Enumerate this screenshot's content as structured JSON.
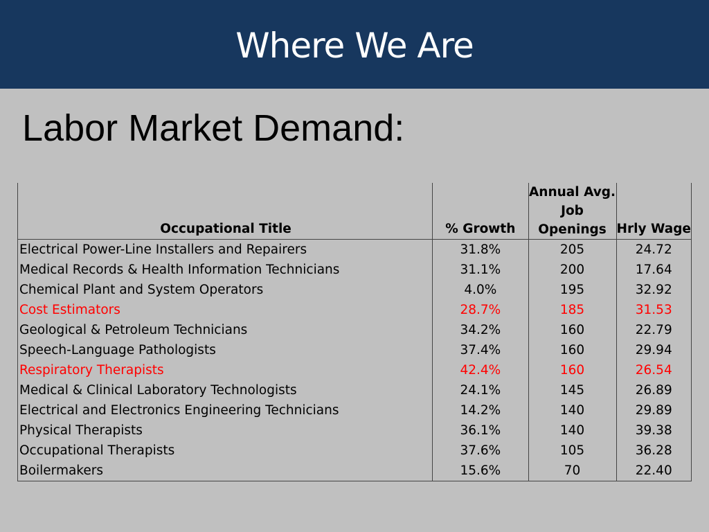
{
  "slide": {
    "title": "Where We Are",
    "subtitle": "Labor Market Demand:"
  },
  "table": {
    "headers": {
      "title": "Occupational Title",
      "growth": "% Growth",
      "openings_lines": [
        "Annual Avg.",
        "Job",
        "Openings"
      ],
      "wage": "Hrly Wage"
    },
    "highlight_color": "#ff0000",
    "rows": [
      {
        "title": "Electrical Power-Line Installers and Repairers",
        "growth": "31.8%",
        "openings": "205",
        "wage": "24.72",
        "highlight": false
      },
      {
        "title": "Medical Records & Health Information Technicians",
        "growth": "31.1%",
        "openings": "200",
        "wage": "17.64",
        "highlight": false
      },
      {
        "title": "Chemical Plant and System Operators",
        "growth": "4.0%",
        "openings": "195",
        "wage": "32.92",
        "highlight": false
      },
      {
        "title": "Cost Estimators",
        "growth": "28.7%",
        "openings": "185",
        "wage": "31.53",
        "highlight": true
      },
      {
        "title": "Geological & Petroleum Technicians",
        "growth": "34.2%",
        "openings": "160",
        "wage": "22.79",
        "highlight": false
      },
      {
        "title": "Speech-Language Pathologists",
        "growth": "37.4%",
        "openings": "160",
        "wage": "29.94",
        "highlight": false
      },
      {
        "title": "Respiratory Therapists",
        "growth": "42.4%",
        "openings": "160",
        "wage": "26.54",
        "highlight": true
      },
      {
        "title": "Medical & Clinical Laboratory Technologists",
        "growth": "24.1%",
        "openings": "145",
        "wage": "26.89",
        "highlight": false
      },
      {
        "title": "Electrical and Electronics Engineering Technicians",
        "growth": "14.2%",
        "openings": "140",
        "wage": "29.89",
        "highlight": false
      },
      {
        "title": "Physical Therapists",
        "growth": "36.1%",
        "openings": "140",
        "wage": "39.38",
        "highlight": false
      },
      {
        "title": "Occupational Therapists",
        "growth": "37.6%",
        "openings": "105",
        "wage": "36.28",
        "highlight": false
      },
      {
        "title": "Boilermakers",
        "growth": "15.6%",
        "openings": "70",
        "wage": "22.40",
        "highlight": false
      }
    ]
  }
}
